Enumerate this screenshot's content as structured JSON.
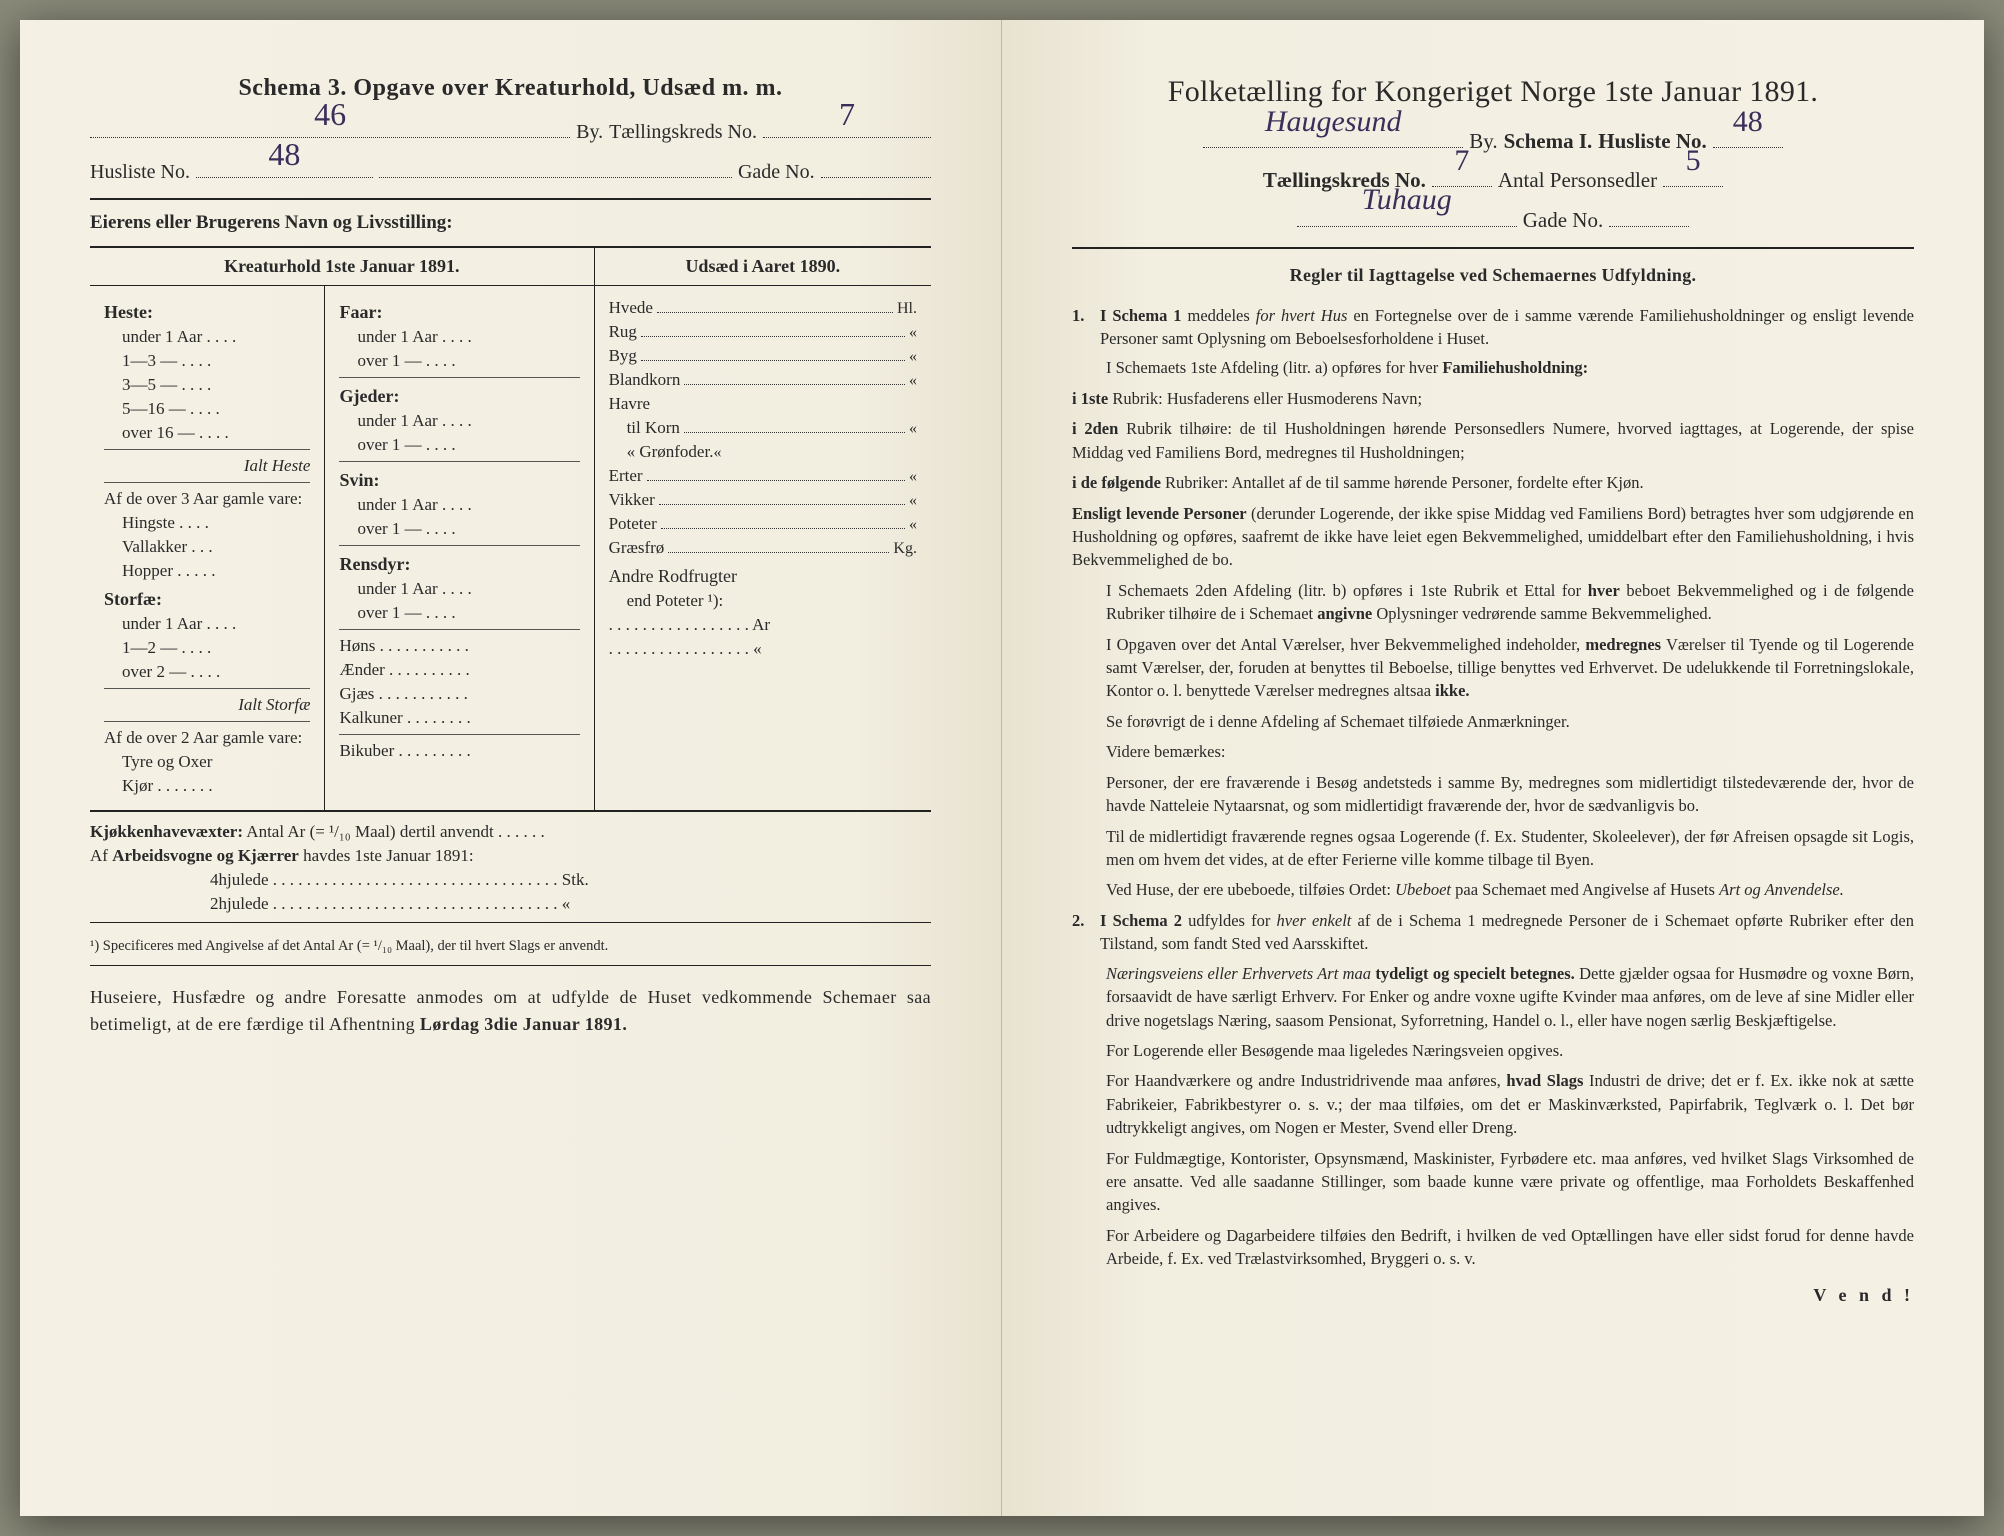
{
  "left": {
    "title": "Schema 3.  Opgave over Kreaturhold, Udsæd m. m.",
    "row1": {
      "by_value": "46",
      "by_label": "By.",
      "kreds_label": "Tællingskreds No.",
      "kreds_value": "7"
    },
    "row2": {
      "hus_label": "Husliste No.",
      "hus_value": "48",
      "gade_label": "Gade No.",
      "gade_value": ""
    },
    "owner_label": "Eierens eller Brugerens Navn og Livsstilling:",
    "head_left": "Kreaturhold 1ste Januar 1891.",
    "head_right": "Udsæd i Aaret 1890.",
    "col1": {
      "heste": "Heste:",
      "heste_rows": [
        "under 1 Aar . . . .",
        "1—3  —   . . . .",
        "3—5  —   . . . .",
        "5—16  —   . . . .",
        "over 16 —   . . . ."
      ],
      "ialt_heste": "Ialt Heste",
      "af3": "Af de over 3 Aar gamle vare:",
      "af3_rows": [
        "Hingste . . . .",
        "Vallakker . . .",
        "Hopper . . . . ."
      ],
      "storfae": "Storfæ:",
      "storfae_rows": [
        "under 1 Aar . . . .",
        "1—2  —   . . . .",
        "over 2   —   . . . ."
      ],
      "ialt_storfae": "Ialt Storfæ",
      "af2": "Af de over 2 Aar gamle vare:",
      "af2_rows": [
        "Tyre og Oxer",
        "Kjør . . . . . . ."
      ]
    },
    "col2": {
      "faar": "Faar:",
      "faar_rows": [
        "under 1 Aar . . . .",
        "over 1  —  . . . ."
      ],
      "gjeder": "Gjeder:",
      "gjeder_rows": [
        "under 1 Aar . . . .",
        "over 1  —  . . . ."
      ],
      "svin": "Svin:",
      "svin_rows": [
        "under 1 Aar . . . .",
        "over 1  —  . . . ."
      ],
      "rensdyr": "Rensdyr:",
      "rensdyr_rows": [
        "under 1 Aar . . . .",
        "over 1  —  . . . ."
      ],
      "poultry": [
        "Høns . . . . . . . . . . .",
        "Ænder . . . . . . . . . .",
        "Gjæs . . . . . . . . . . .",
        "Kalkuner . . . . . . . .",
        "Bikuber . . . . . . . . ."
      ]
    },
    "col3": {
      "rows": [
        {
          "l": "Hvede",
          "u": "Hl."
        },
        {
          "l": "Rug",
          "u": "«"
        },
        {
          "l": "Byg",
          "u": "«"
        },
        {
          "l": "Blandkorn",
          "u": "«"
        },
        {
          "l": "Havre",
          "u": ""
        },
        {
          "l": "  til Korn",
          "u": "«",
          "sub": true
        },
        {
          "l": "  «  Grønfoder.",
          "u": "«",
          "sub": true
        },
        {
          "l": "Erter",
          "u": "«"
        },
        {
          "l": "Vikker",
          "u": "«"
        },
        {
          "l": "Poteter",
          "u": "«"
        },
        {
          "l": "Græsfrø",
          "u": "Kg."
        }
      ],
      "andre": "Andre Rodfrugter",
      "andre2": "end Poteter ¹):",
      "andre_lines": [
        ". . . . . . . . . . . . . . . . . Ar",
        ". . . . . . . . . . . . . . . . .  «"
      ]
    },
    "kjokken": "Kjøkkenhavevæxter:  Antal Ar (= ¹/₁₀ Maal) dertil anvendt . . . . . .",
    "arbeid": "Af Arbeidsvogne og Kjærrer havdes 1ste Januar 1891:",
    "hjul4": "4hjulede . . . . . . . . . . . . . . . . . . . . . . . . . . . . . . . . . . Stk.",
    "hjul2": "2hjulede . . . . . . . . . . . . . . . . . . . . . . . . . . . . . . . . . .   «",
    "footnote": "¹) Specificeres med Angivelse af det Antal Ar (= ¹/₁₀ Maal), der til hvert Slags er anvendt.",
    "note": "Huseiere, Husfædre og andre Foresatte anmodes om at udfylde de Huset vedkommende Schemaer saa betimeligt, at de ere færdige til Afhentning <b>Lørdag 3die Januar 1891.</b>"
  },
  "right": {
    "title": "Folketælling for Kongeriget Norge 1ste Januar 1891.",
    "row1": {
      "by_value": "Haugesund",
      "by_label": "By.",
      "schema_label": "Schema I.",
      "hus_label": "Husliste No.",
      "hus_value": "48"
    },
    "row2": {
      "kreds_label": "Tællingskreds No.",
      "kreds_value": "7",
      "antal_label": "Antal Personsedler",
      "antal_value": "5"
    },
    "row3": {
      "gade_value": "Tuhaug",
      "gade_label": "Gade No.",
      "gade_no": ""
    },
    "regler_head": "Regler til Iagttagelse ved Schemaernes Udfyldning.",
    "rules_html": "<div class='num'><span class='n'>1.</span><span><b>I Schema 1</b> meddeles <i>for hvert Hus</i> en Fortegnelse over de i samme værende Familiehusholdninger og ensligt levende Personer samt Oplysning om Beboelsesforholdene i Huset.</span></div><p class='ind'>I Schemaets 1ste Afdeling (litr. a) opføres for hver <b>Familiehusholdning:</b></p><p><b>i 1ste</b> Rubrik: Husfaderens eller Husmoderens Navn;</p><p><b>i 2den</b> Rubrik tilhøire: de til Husholdningen hørende Personsedlers Numere, hvorved iagttages, at Logerende, der spise Middag ved Familiens Bord, medregnes til Husholdningen;</p><p><b>i de følgende</b> Rubriker: Antallet af de til samme hørende Personer, fordelte efter Kjøn.</p><p><b>Ensligt levende Personer</b> (derunder Logerende, der ikke spise Middag ved Familiens Bord) betragtes hver som udgjørende en Husholdning og opføres, saafremt de ikke have leiet egen Bekvemmelighed, umiddelbart efter den Familiehusholdning, i hvis Bekvemmelighed de bo.</p><p class='ind'>I Schemaets 2den Afdeling (litr. b) opføres i 1ste Rubrik et Ettal for <b>hver</b> beboet Bekvemmelighed og i de følgende Rubriker tilhøire de i Schemaet <b>angivne</b> Oplysninger vedrørende samme Bekvemmelighed.</p><p class='ind'>I Opgaven over det Antal Værelser, hver Bekvemmelighed indeholder, <b>medregnes</b> Værelser til Tyende og til Logerende samt Værelser, der, foruden at benyttes til Beboelse, tillige benyttes ved Erhvervet. De udelukkende til Forretningslokale, Kontor o. l. benyttede Værelser medregnes altsaa <b>ikke.</b></p><p class='ind'>Se forøvrigt de i denne Afdeling af Schemaet tilføiede Anmærkninger.</p><p class='ind'>Videre bemærkes:</p><p class='ind'>Personer, der ere fraværende i Besøg andetsteds i samme By, medregnes som midlertidigt tilstedeværende der, hvor de havde Natteleie Nytaarsnat, og som midlertidigt fraværende der, hvor de sædvanligvis bo.</p><p class='ind'>Til de midlertidigt fraværende regnes ogsaa Logerende (f. Ex. Studenter, Skoleelever), der før Afreisen opsagde sit Logis, men om hvem det vides, at de efter Ferierne ville komme tilbage til Byen.</p><p class='ind'>Ved Huse, der ere ubeboede, tilføies Ordet: <i>Ubeboet</i> paa Schemaet med Angivelse af Husets <i>Art og Anvendelse.</i></p><div class='num'><span class='n'>2.</span><span><b>I Schema 2</b> udfyldes for <i>hver enkelt</i> af de i Schema 1 medregnede Personer de i Schemaet opførte Rubriker efter den Tilstand, som fandt Sted ved Aarsskiftet.</span></div><p class='ind'><i>Næringsveiens eller Erhvervets Art maa</i> <b>tydeligt og specielt betegnes.</b> Dette gjælder ogsaa for Husmødre og voxne Børn, forsaavidt de have særligt Erhverv. For Enker og andre voxne ugifte Kvinder maa anføres, om de leve af sine Midler eller drive nogetslags Næring, saasom Pensionat, Syforretning, Handel o. l., eller have nogen særlig Beskjæftigelse.</p><p class='ind'>For Logerende eller Besøgende maa ligeledes Næringsveien opgives.</p><p class='ind'>For Haandværkere og andre Industridrivende maa anføres, <b>hvad Slags</b> Industri de drive; det er f. Ex. ikke nok at sætte Fabrikeier, Fabrikbestyrer o. s. v.; der maa tilføies, om det er Maskinværksted, Papirfabrik, Teglværk o. l. Det bør udtrykkeligt angives, om Nogen er Mester, Svend eller Dreng.</p><p class='ind'>For Fuldmægtige, Kontorister, Opsynsmænd, Maskinister, Fyrbødere etc. maa anføres, ved hvilket Slags Virksomhed de ere ansatte. Ved alle saadanne Stillinger, som baade kunne være private og offentlige, maa Forholdets Beskaffenhed angives.</p><p class='ind'>For Arbeidere og Dagarbeidere tilføies den Bedrift, i hvilken de ved Optællingen have eller sidst forud for denne havde Arbeide, f. Ex. ved Trælastvirksomhed, Bryggeri o. s. v.</p>",
    "vend": "V e n d !"
  }
}
